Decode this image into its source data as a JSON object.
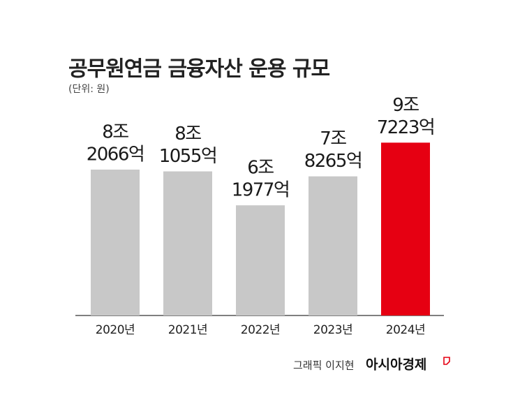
{
  "chart_data": {
    "type": "bar",
    "title": "공무원연금 금융자산 운용 규모",
    "subtitle": "(단위: 원)",
    "categories": [
      "2020년",
      "2021년",
      "2022년",
      "2023년",
      "2024년"
    ],
    "values": [
      82066,
      81055,
      61977,
      78265,
      97223
    ],
    "value_labels": [
      [
        "8조",
        "2066억"
      ],
      [
        "8조",
        "1055억"
      ],
      [
        "6조",
        "1977억"
      ],
      [
        "7조",
        "8265억"
      ],
      [
        "9조",
        "7223억"
      ]
    ],
    "colors": [
      "#c8c8c8",
      "#c8c8c8",
      "#c8c8c8",
      "#c8c8c8",
      "#e60012"
    ],
    "credit": "그래픽 이지현",
    "source": "아시아경제"
  }
}
